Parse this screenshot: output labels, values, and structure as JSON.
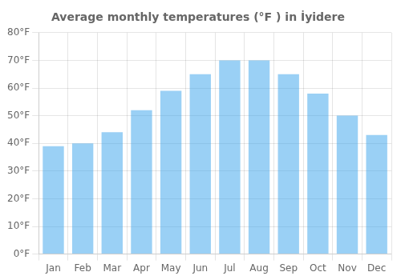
{
  "chart_data": {
    "type": "bar",
    "title": "Average monthly temperatures (°F ) in İyidere",
    "categories": [
      "Jan",
      "Feb",
      "Mar",
      "Apr",
      "May",
      "Jun",
      "Jul",
      "Aug",
      "Sep",
      "Oct",
      "Nov",
      "Dec"
    ],
    "values": [
      39,
      40,
      44,
      52,
      59,
      65,
      70,
      70,
      65,
      58,
      50,
      43
    ],
    "ylim": [
      0,
      80
    ],
    "yticks": [
      {
        "value": 0,
        "label": "0°F"
      },
      {
        "value": 10,
        "label": "10°F"
      },
      {
        "value": 20,
        "label": "20°F"
      },
      {
        "value": 30,
        "label": "30°F"
      },
      {
        "value": 40,
        "label": "40°F"
      },
      {
        "value": 50,
        "label": "50°F"
      },
      {
        "value": 60,
        "label": "60°F"
      },
      {
        "value": 70,
        "label": "70°F"
      },
      {
        "value": 80,
        "label": "80°F"
      }
    ],
    "grid": true
  }
}
